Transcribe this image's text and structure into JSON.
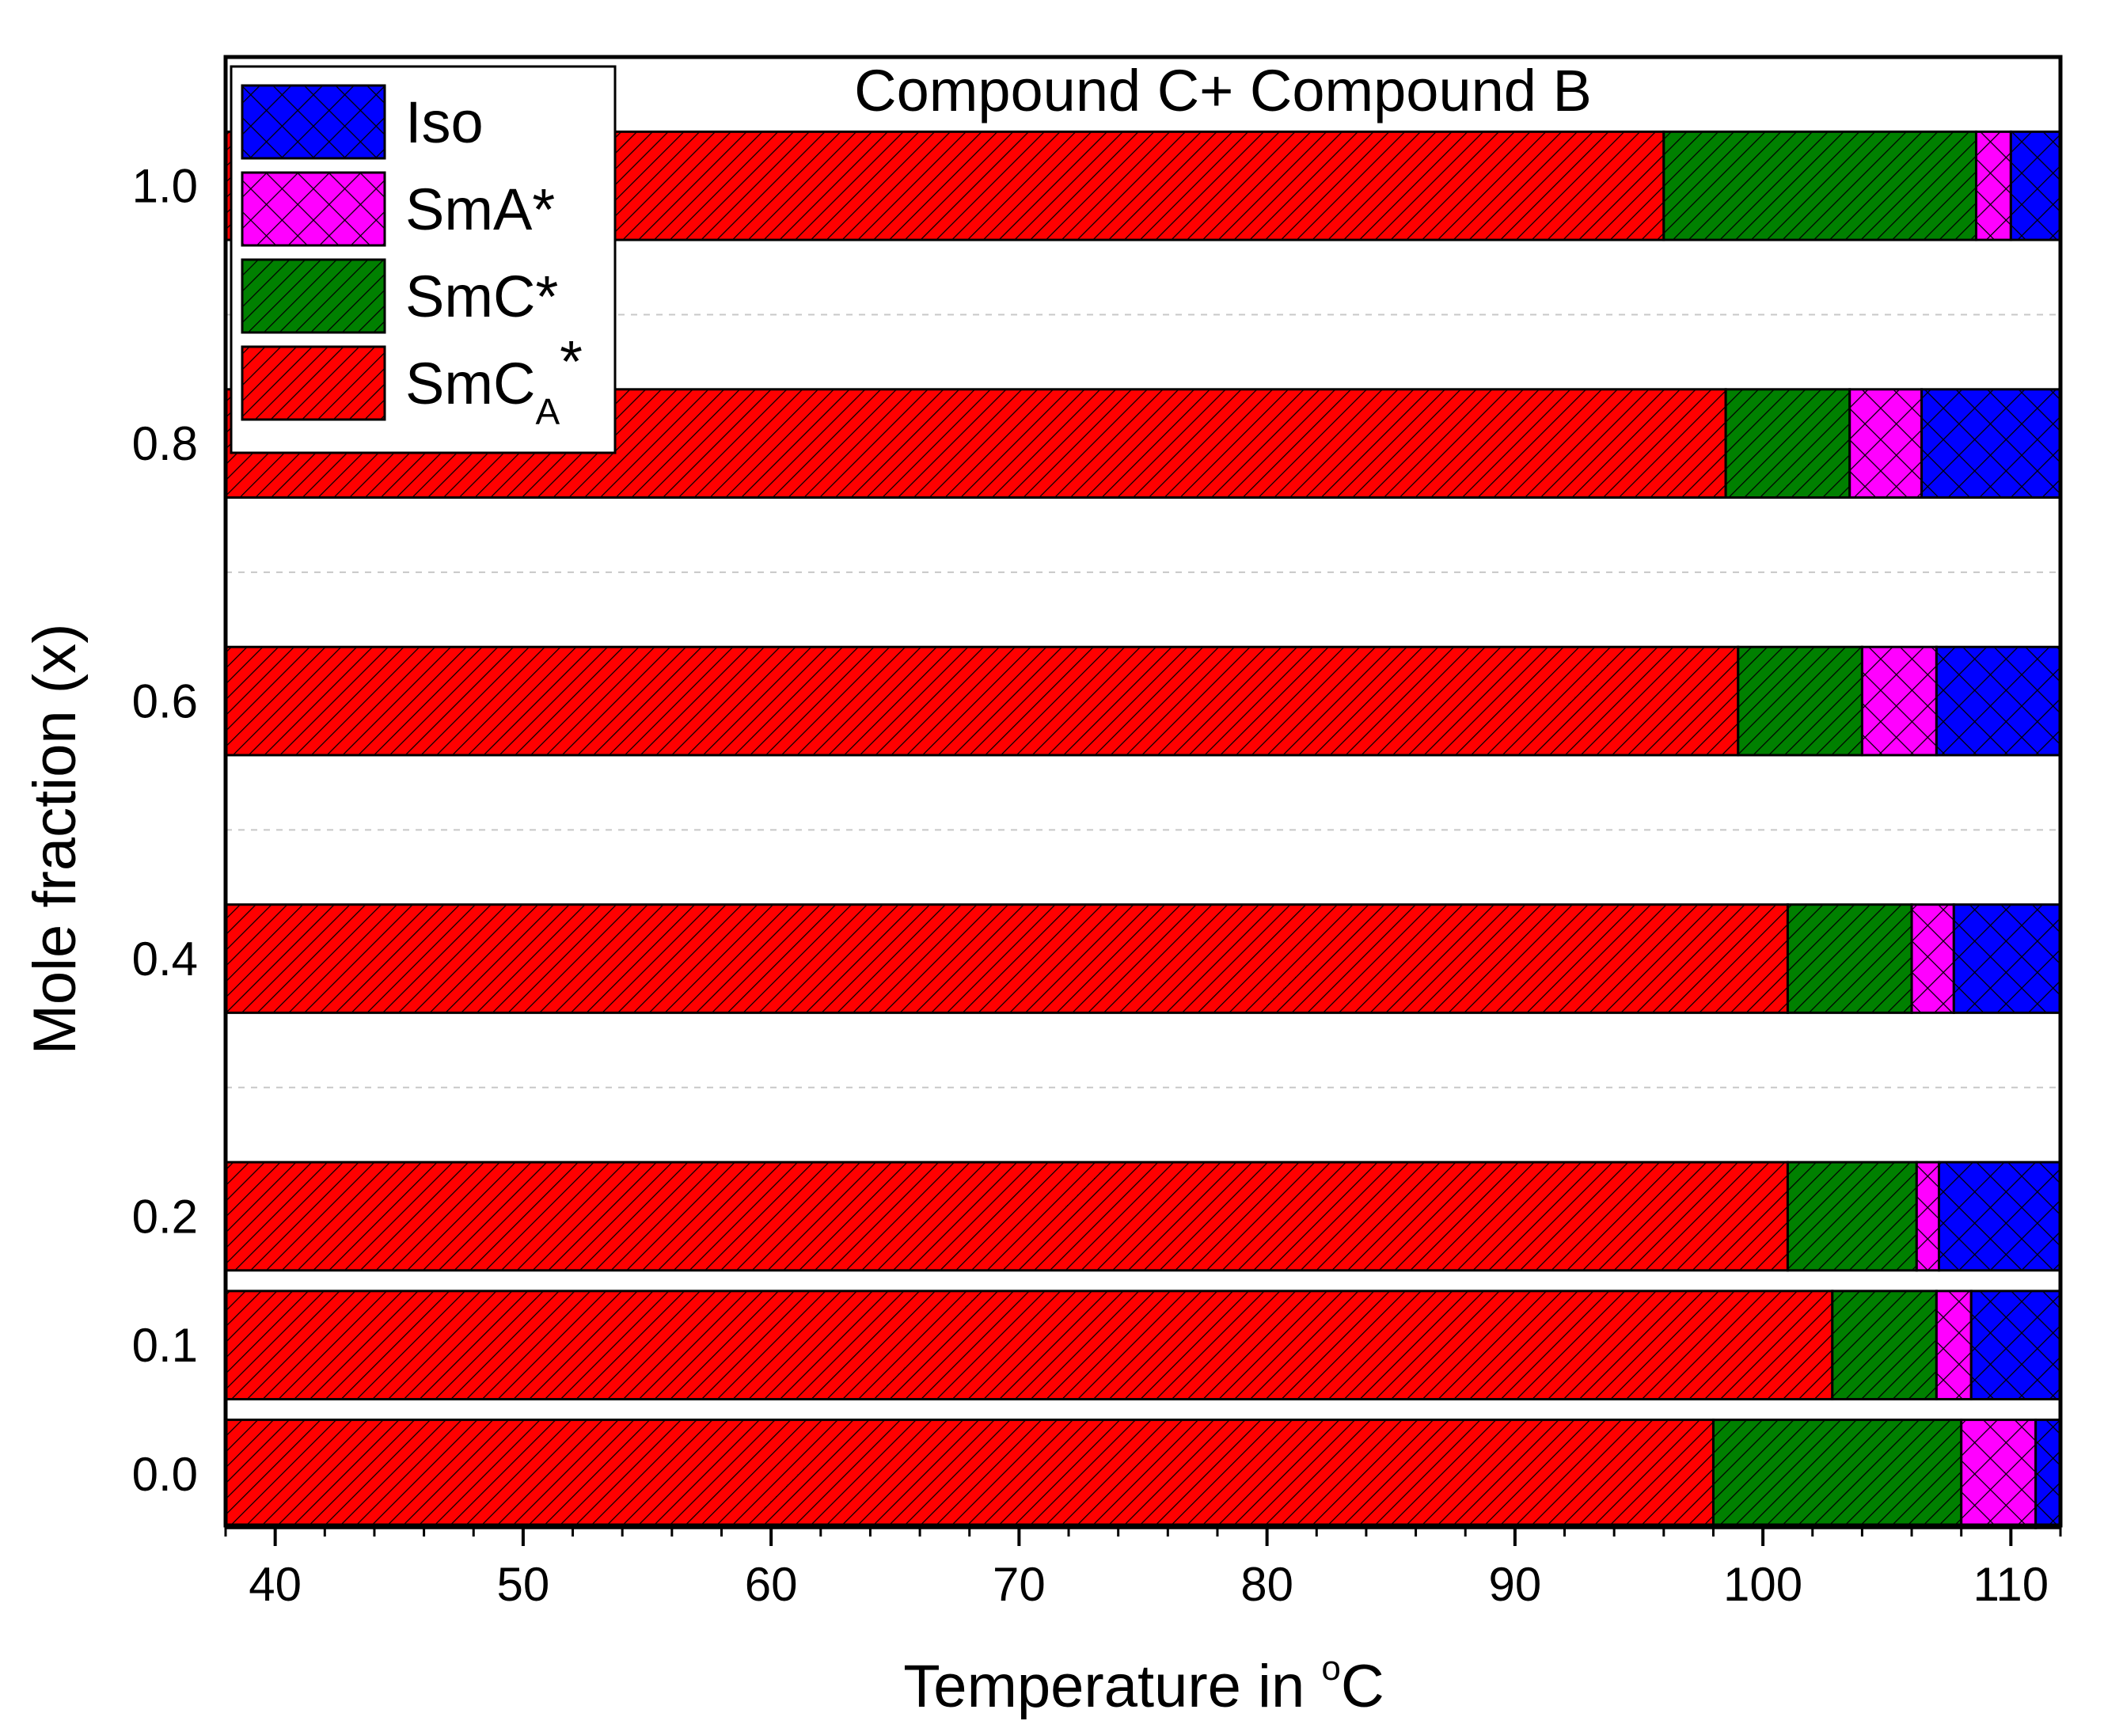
{
  "chart_data": {
    "type": "bar",
    "orientation": "horizontal",
    "stacked": true,
    "title": "Compound C+ Compound B",
    "xlabel_main": "Temperature in ",
    "xlabel_sup": "o",
    "xlabel_unit": "C",
    "ylabel": "Mole fraction (x)",
    "xlim": [
      38,
      112
    ],
    "ylim": [
      -0.04,
      1.1
    ],
    "x_ticks": [
      40,
      50,
      60,
      70,
      80,
      90,
      100,
      110
    ],
    "grid": "y-dashed",
    "legend_position": "top-left",
    "categories": [
      {
        "x": 0.0,
        "label": "0.0",
        "half_height": 0.042
      },
      {
        "x": 0.1,
        "label": "0.1",
        "half_height": 0.042
      },
      {
        "x": 0.2,
        "label": "0.2",
        "half_height": 0.042
      },
      {
        "x": 0.4,
        "label": "0.4",
        "half_height": 0.042
      },
      {
        "x": 0.6,
        "label": "0.6",
        "half_height": 0.042
      },
      {
        "x": 0.8,
        "label": "0.8",
        "half_height": 0.042
      },
      {
        "x": 1.0,
        "label": "1.0",
        "half_height": 0.042
      }
    ],
    "series": [
      {
        "name": "SmCA*",
        "label_main": "SmC",
        "label_sub": "A",
        "label_tail": "*",
        "color": "#ff0000",
        "pattern": "diagonal",
        "ranges": [
          [
            38,
            98
          ],
          [
            38,
            102.8
          ],
          [
            38,
            101
          ],
          [
            38,
            101
          ],
          [
            38,
            99
          ],
          [
            38,
            98.5
          ],
          [
            38,
            96
          ]
        ]
      },
      {
        "name": "SmC*",
        "label_main": "SmC*",
        "color": "#008000",
        "pattern": "diagonal",
        "ranges": [
          [
            98,
            108
          ],
          [
            102.8,
            107
          ],
          [
            101,
            106.2
          ],
          [
            101,
            106
          ],
          [
            99,
            104
          ],
          [
            98.5,
            103.5
          ],
          [
            96,
            108.6
          ]
        ]
      },
      {
        "name": "SmA*",
        "label_main": "SmA*",
        "color": "#ff00ff",
        "pattern": "crosshatch",
        "ranges": [
          [
            108,
            111
          ],
          [
            107,
            108.4
          ],
          [
            106.2,
            107.1
          ],
          [
            106,
            107.7
          ],
          [
            104,
            107
          ],
          [
            103.5,
            106.4
          ],
          [
            108.6,
            110
          ]
        ]
      },
      {
        "name": "Iso",
        "label_main": "Iso",
        "color": "#0000ff",
        "pattern": "crosshatch",
        "ranges": [
          [
            111,
            112
          ],
          [
            108.4,
            112
          ],
          [
            107.1,
            112
          ],
          [
            107.7,
            112
          ],
          [
            107,
            112
          ],
          [
            106.4,
            112
          ],
          [
            110,
            112
          ]
        ]
      }
    ],
    "legend_order": [
      "Iso",
      "SmA*",
      "SmC*",
      "SmCA*"
    ]
  }
}
